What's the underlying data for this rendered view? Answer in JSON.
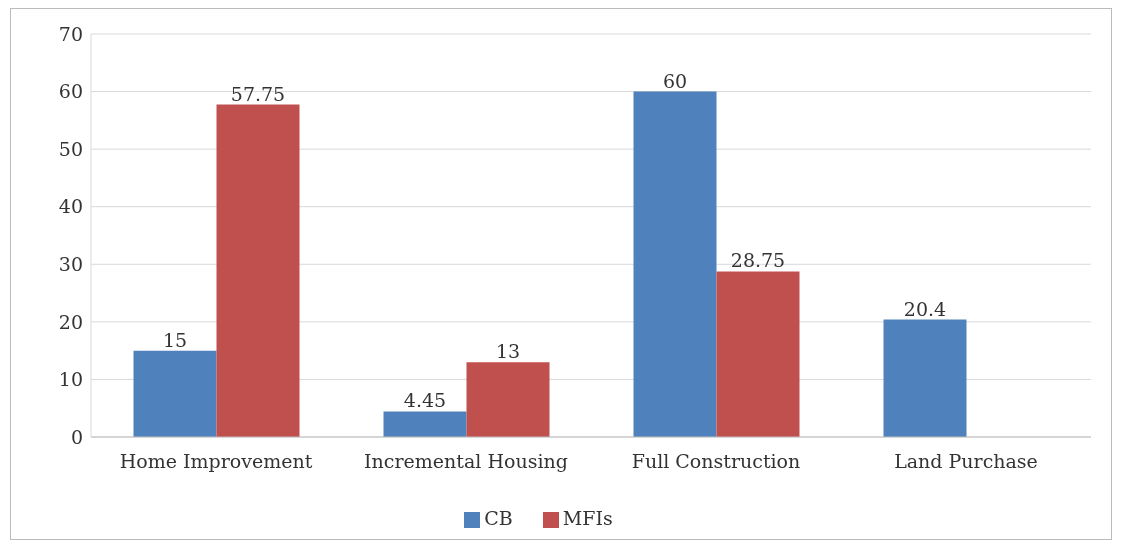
{
  "chart_data": {
    "type": "bar",
    "categories": [
      "Home Improvement",
      "Incremental Housing",
      "Full Construction",
      "Land Purchase"
    ],
    "series": [
      {
        "name": "CB",
        "color": "#4f81bd",
        "values": [
          15,
          4.45,
          60,
          20.4
        ]
      },
      {
        "name": "MFIs",
        "color": "#c0504d",
        "values": [
          57.75,
          13,
          28.75,
          null
        ]
      }
    ],
    "ylim": [
      0,
      70
    ],
    "yticks": [
      0,
      10,
      20,
      30,
      40,
      50,
      60,
      70
    ],
    "grid": "y",
    "legend": "bottom",
    "data_labels": true
  }
}
